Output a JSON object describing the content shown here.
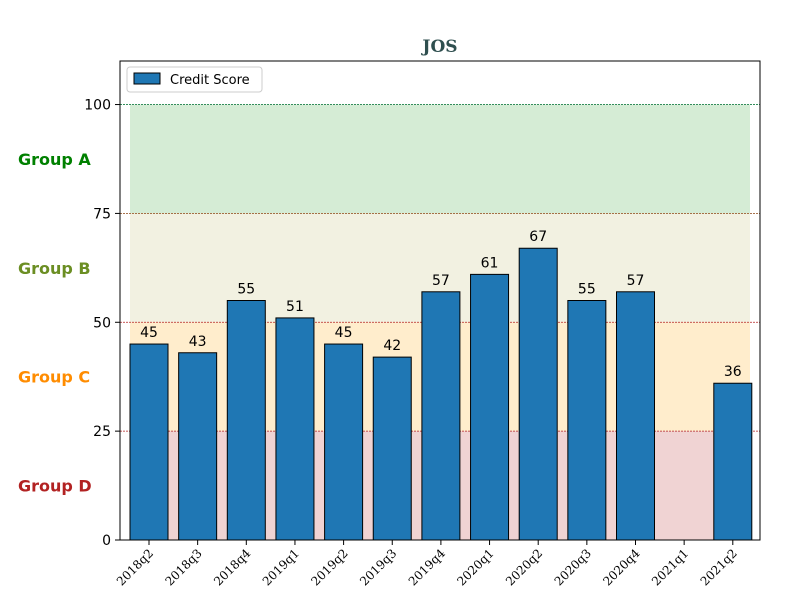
{
  "chart_data": {
    "type": "bar",
    "title": "JOS",
    "xlabel": "",
    "ylabel": "",
    "categories": [
      "2018q2",
      "2018q3",
      "2018q4",
      "2019q1",
      "2019q2",
      "2019q3",
      "2019q4",
      "2020q1",
      "2020q2",
      "2020q3",
      "2020q4",
      "2021q1",
      "2021q2"
    ],
    "series": [
      {
        "name": "Credit Score",
        "values": [
          45,
          43,
          55,
          51,
          45,
          42,
          57,
          61,
          67,
          55,
          57,
          null,
          36
        ],
        "color": "#1f77b4"
      }
    ],
    "ylim": [
      0,
      110
    ],
    "yticks": [
      0,
      25,
      50,
      75,
      100
    ],
    "legend_position": "upper-left",
    "bands": [
      {
        "label": "Group A",
        "from": 75,
        "to": 100,
        "color": "#2ca02c",
        "label_color": "#008000",
        "line_color": "#2e8b57"
      },
      {
        "label": "Group B",
        "from": 50,
        "to": 75,
        "color": "#bdb76b",
        "label_color": "#6b8e23",
        "line_color": "#8b4513"
      },
      {
        "label": "Group C",
        "from": 25,
        "to": 50,
        "color": "#ffa500",
        "label_color": "#ff8c00",
        "line_color": "#b22222"
      },
      {
        "label": "Group D",
        "from": 0,
        "to": 25,
        "color": "#b22222",
        "label_color": "#b22222",
        "line_color": "#b22222"
      }
    ]
  }
}
